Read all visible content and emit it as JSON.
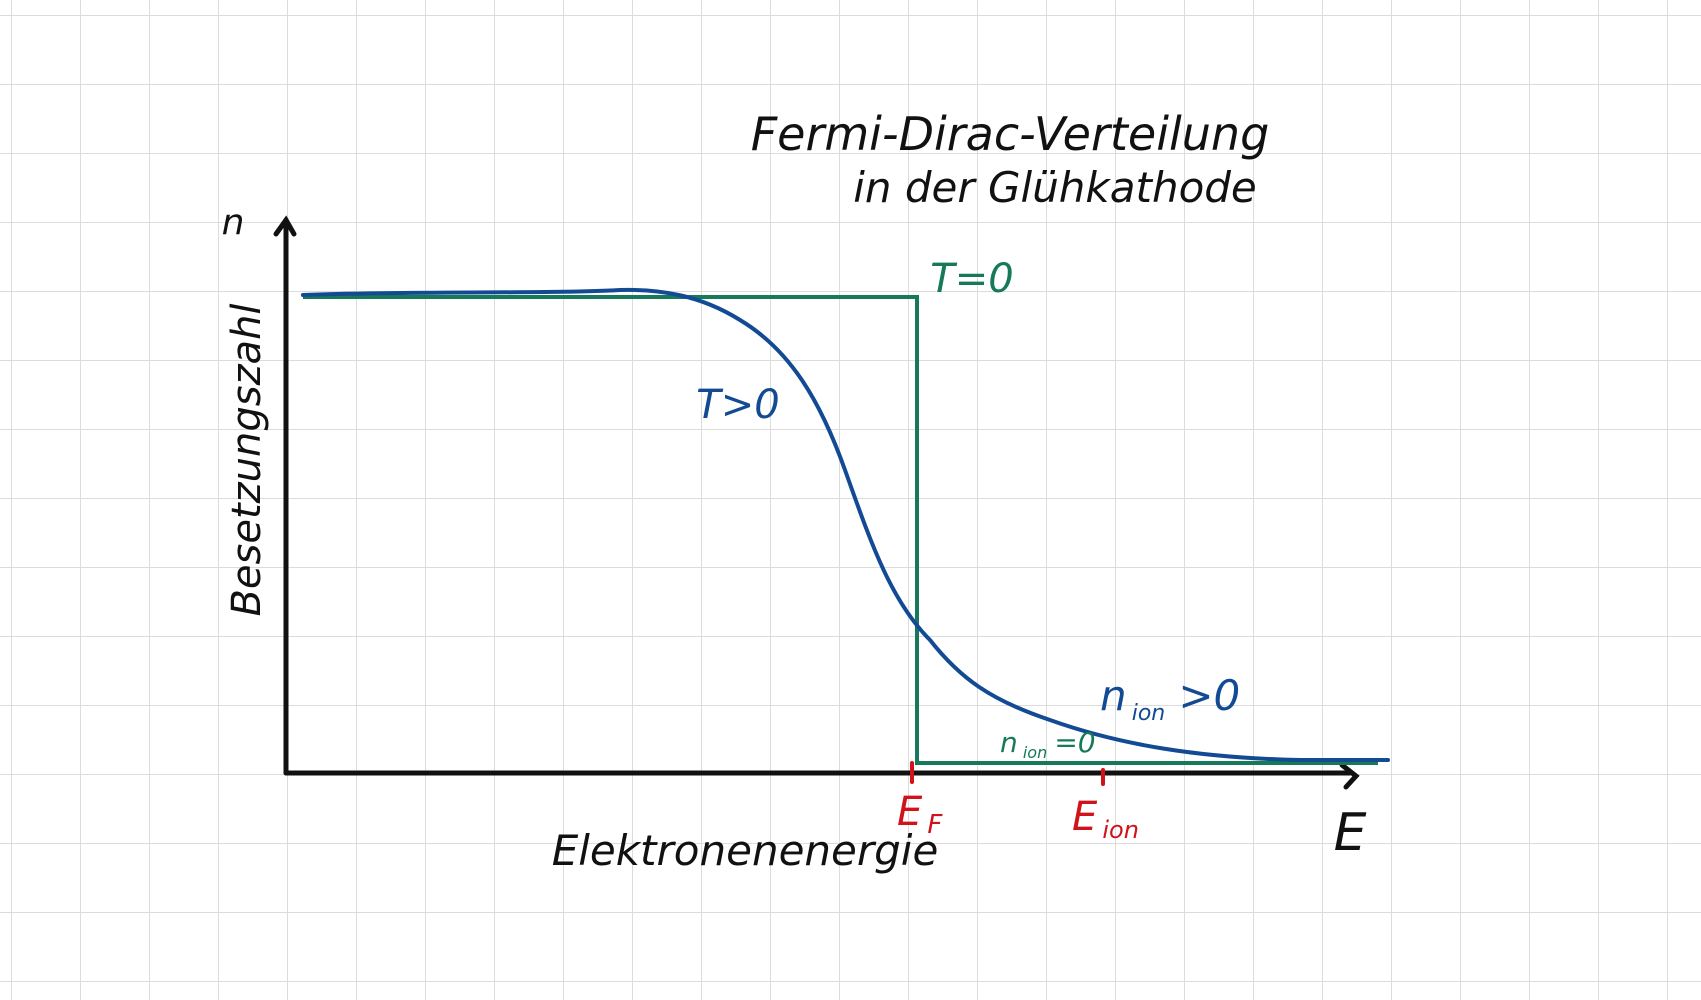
{
  "title": {
    "line1": "Fermi-Dirac-Verteilung",
    "line2": "in der Glühkathode"
  },
  "axes": {
    "y_symbol": "n",
    "y_label": "Besetzungszahl",
    "x_symbol": "E",
    "x_label": "Elektronenenergie"
  },
  "curves": {
    "t_zero": {
      "label": "T=0",
      "color": "#167a5a"
    },
    "t_positive": {
      "label": "T>0",
      "color": "#124a94"
    }
  },
  "annotations": {
    "n_ion_positive": {
      "main": "n",
      "sub": "ion",
      "rest": ">0"
    },
    "n_ion_zero": {
      "main": "n",
      "sub": "ion",
      "rest": "=0"
    }
  },
  "energy_marks": {
    "fermi": {
      "main": "E",
      "sub": "F"
    },
    "ionization": {
      "main": "E",
      "sub": "ion"
    },
    "color": "#d0121b"
  },
  "colors": {
    "axes": "#111111",
    "grid": "#dcdcdc"
  }
}
